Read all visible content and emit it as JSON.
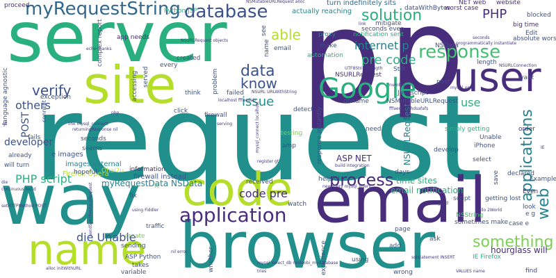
{
  "palette": {
    "teal": "#21908d",
    "green": "#2ab07f",
    "lime": "#b5de2b",
    "yellowgreen": "#7ad151",
    "purple": "#472d7b",
    "navy": "#3b528b",
    "blue": "#31688e",
    "darkteal": "#26828e",
    "mint": "#44bf70",
    "yellow": "#dde318",
    "indigo": "#443983",
    "black": "#440154"
  },
  "words": [
    {
      "text": "request"
    },
    {
      "text": "p"
    },
    {
      "text": "p"
    },
    {
      "text": "server"
    },
    {
      "text": "way"
    },
    {
      "text": "email"
    },
    {
      "text": "browser"
    },
    {
      "text": "code"
    },
    {
      "text": "site"
    },
    {
      "text": "name"
    },
    {
      "text": "user"
    },
    {
      "text": "Google"
    },
    {
      "text": "application"
    },
    {
      "text": "database"
    },
    {
      "text": "myRequestString"
    },
    {
      "text": "solution"
    },
    {
      "text": "response"
    },
    {
      "text": "process"
    },
    {
      "text": "something"
    },
    {
      "text": "applications"
    },
    {
      "text": "web"
    },
    {
      "text": "data"
    },
    {
      "text": "know"
    },
    {
      "text": "verify"
    },
    {
      "text": "issue"
    },
    {
      "text": "pre code"
    },
    {
      "text": "internet p"
    },
    {
      "text": "PHP"
    },
    {
      "text": "PHP script"
    },
    {
      "text": "die Unable"
    },
    {
      "text": "code pre"
    },
    {
      "text": "able"
    },
    {
      "text": "use"
    },
    {
      "text": "others"
    },
    {
      "text": "POST"
    },
    {
      "text": "developer"
    },
    {
      "text": "myRequestData NSData"
    },
    {
      "text": "ASP NET"
    },
    {
      "text": "NSURLRequest"
    },
    {
      "text": "hourglass will"
    },
    {
      "text": "time sites"
    },
    {
      "text": "email notification"
    },
    {
      "text": "e images"
    },
    {
      "text": "images external"
    },
    {
      "text": "firewall instead"
    },
    {
      "text": "Firefox Opera"
    },
    {
      "text": "turn indefinitely sits"
    },
    {
      "text": "actually reaching"
    },
    {
      "text": "dataWithBytes"
    },
    {
      "text": "worst case"
    },
    {
      "text": "NET web"
    },
    {
      "text": "website"
    },
    {
      "text": "big time"
    },
    {
      "text": "absolute worst"
    },
    {
      "text": "Edit"
    },
    {
      "text": "blocked"
    },
    {
      "text": "NSData"
    },
    {
      "text": "proxy"
    },
    {
      "text": "make"
    },
    {
      "text": "mitigate"
    },
    {
      "text": "seconds even"
    },
    {
      "text": "notification sent"
    },
    {
      "text": "Python JSP"
    },
    {
      "text": "complex report"
    },
    {
      "text": "app needs"
    },
    {
      "text": "proceed"
    },
    {
      "text": "automation"
    },
    {
      "text": "exception"
    },
    {
      "text": "language agnostic"
    },
    {
      "text": "fails"
    },
    {
      "text": "already"
    },
    {
      "text": "will turn"
    },
    {
      "text": "seconds"
    },
    {
      "text": "seems"
    },
    {
      "text": "hopeful"
    },
    {
      "text": "Ohai2u"
    },
    {
      "text": "information"
    },
    {
      "text": "It"
    },
    {
      "text": "fix"
    },
    {
      "text": "traffic"
    },
    {
      "text": "create"
    },
    {
      "text": "sending"
    },
    {
      "text": "ASP Python"
    },
    {
      "text": "takes"
    },
    {
      "text": "variable"
    },
    {
      "text": "whether"
    },
    {
      "text": "experience"
    },
    {
      "text": "using"
    },
    {
      "text": "wrong"
    },
    {
      "text": "add"
    },
    {
      "text": "page"
    },
    {
      "text": "ask"
    },
    {
      "text": "sometimes make"
    },
    {
      "text": "Even"
    },
    {
      "text": "getting lost"
    },
    {
      "text": "look"
    },
    {
      "text": "case e"
    },
    {
      "text": "e g"
    },
    {
      "text": "find"
    },
    {
      "text": "IE Firefox"
    },
    {
      "text": "NSString"
    },
    {
      "text": "script"
    },
    {
      "text": "Examples"
    },
    {
      "text": "declared"
    },
    {
      "text": "order"
    },
    {
      "text": "simply getting"
    },
    {
      "text": "Unable"
    },
    {
      "text": "iPhone"
    },
    {
      "text": "develop"
    },
    {
      "text": "select"
    },
    {
      "text": "days"
    },
    {
      "text": "helpful"
    },
    {
      "text": "received"
    },
    {
      "text": "watch"
    },
    {
      "text": "response instantly"
    },
    {
      "text": "amp"
    },
    {
      "text": "testing"
    },
    {
      "text": "need"
    },
    {
      "text": "firewall"
    },
    {
      "text": "detect"
    },
    {
      "text": "failed"
    },
    {
      "text": "think"
    },
    {
      "text": "click"
    },
    {
      "text": "created"
    },
    {
      "text": "every"
    },
    {
      "text": "served"
    },
    {
      "text": "accessing"
    },
    {
      "text": "problem"
    },
    {
      "text": "post"
    },
    {
      "text": "want"
    },
    {
      "text": "Still"
    },
    {
      "text": "Javascript"
    },
    {
      "text": "length"
    },
    {
      "text": "save"
    },
    {
      "text": "dbname"
    },
    {
      "text": "NSURLRequest"
    },
    {
      "text": "NSMutableURLRequest"
    },
    {
      "text": "email"
    },
    {
      "text": "name"
    },
    {
      "text": "see"
    },
    {
      "text": "connect"
    },
    {
      "text": "NSMutableURLRequest alloc"
    },
    {
      "text": "localhost fffaedab"
    },
    {
      "text": "mysql_select_db mrdaobi_mydatabase"
    },
    {
      "text": "sqlstatement INSERT"
    },
    {
      "text": "Hello 2World"
    },
    {
      "text": "using Fiddler"
    },
    {
      "text": "build integration"
    },
    {
      "text": "continuous build"
    },
    {
      "text": "newquery mysql_query"
    },
    {
      "text": "register gt"
    },
    {
      "text": "NSURLRequest objects"
    },
    {
      "text": "echo thanks"
    },
    {
      "text": "nil error"
    },
    {
      "text": "alloc initWithURL"
    },
    {
      "text": "link mysql_connect"
    },
    {
      "text": "returningResponse nil"
    },
    {
      "text": "setHTTPMethod POST"
    },
    {
      "text": "VALUES name"
    },
    {
      "text": "NSURLConnection"
    },
    {
      "text": "programmatically instantiate"
    },
    {
      "text": "fffaedab 4hdsafafs"
    },
    {
      "text": "UTF8String length"
    },
    {
      "text": "mysql_error"
    },
    {
      "text": "NSURL URLWithString"
    },
    {
      "text": "sendSynchronousRequest"
    },
    {
      "text": "mysql_connect localhost"
    },
    {
      "text": "die"
    },
    {
      "text": "tries"
    },
    {
      "text": "serving"
    },
    {
      "text": "seconds"
    },
    {
      "text": "good"
    },
    {
      "text": "php"
    },
    {
      "text": "IE"
    },
    {
      "text": "gt"
    },
    {
      "text": "number"
    },
    {
      "text": "will"
    },
    {
      "text": "link"
    }
  ]
}
